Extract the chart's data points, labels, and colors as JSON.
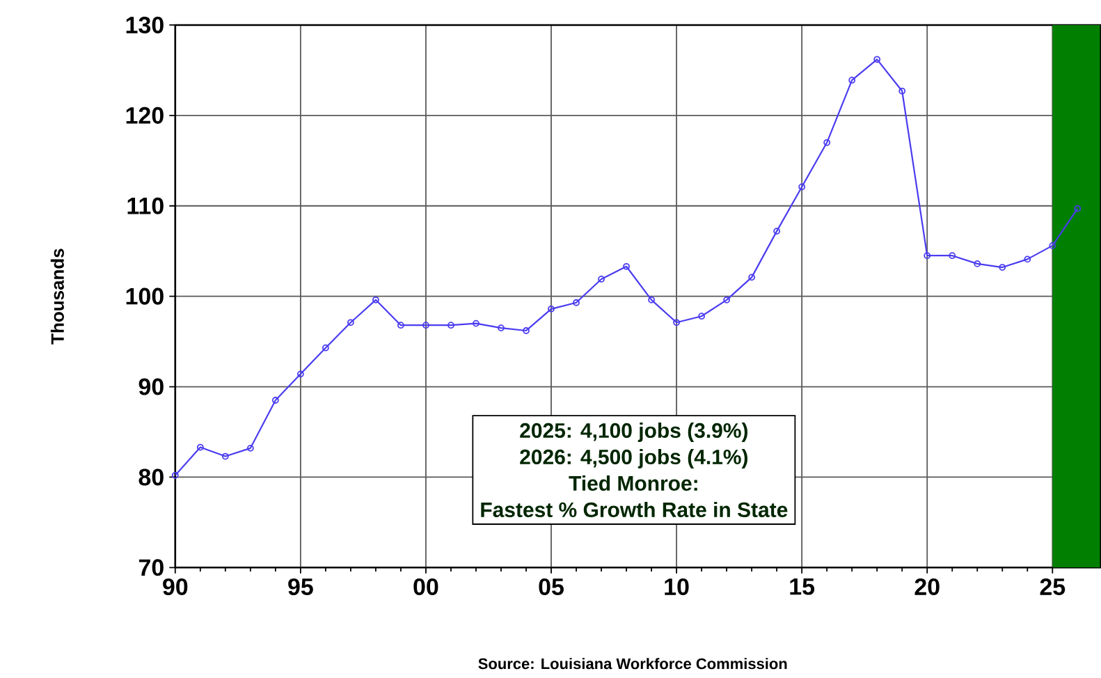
{
  "chart_data": {
    "type": "line",
    "ylabel": "Thousands",
    "x": [
      1990,
      1991,
      1992,
      1993,
      1994,
      1995,
      1996,
      1997,
      1998,
      1999,
      2000,
      2001,
      2002,
      2003,
      2004,
      2005,
      2006,
      2007,
      2008,
      2009,
      2010,
      2011,
      2012,
      2013,
      2014,
      2015,
      2016,
      2017,
      2018,
      2019,
      2020,
      2021,
      2022,
      2023,
      2024,
      2025,
      2026
    ],
    "series": [
      {
        "color": "#4b3cf0",
        "values": [
          80.2,
          83.3,
          82.3,
          83.2,
          88.5,
          91.4,
          94.3,
          97.1,
          99.6,
          96.8,
          96.8,
          96.8,
          97.0,
          96.5,
          96.2,
          98.6,
          99.3,
          101.9,
          103.3,
          99.6,
          97.1,
          97.8,
          99.6,
          102.1,
          107.2,
          112.1,
          117.0,
          123.9,
          126.2,
          122.7,
          104.5,
          104.5,
          103.6,
          103.2,
          104.1,
          105.6,
          109.7
        ]
      }
    ],
    "xlim": [
      1990,
      2026.9
    ],
    "ylim": [
      70,
      130
    ],
    "xticks": [
      {
        "value": 1990,
        "label": "90"
      },
      {
        "value": 1995,
        "label": "95"
      },
      {
        "value": 2000,
        "label": "00"
      },
      {
        "value": 2005,
        "label": "05"
      },
      {
        "value": 2010,
        "label": "10"
      },
      {
        "value": 2015,
        "label": "15"
      },
      {
        "value": 2020,
        "label": "20"
      },
      {
        "value": 2025,
        "label": "25"
      }
    ],
    "yticks": [
      70,
      80,
      90,
      100,
      110,
      120,
      130
    ],
    "bands": [
      {
        "axis": "x",
        "from": 2025,
        "to": 2026.9,
        "color": "#007f00"
      }
    ],
    "annotations": [
      "2025: 4,100 jobs (3.9%)",
      "2026: 4,500 jobs (4.1%)",
      "Tied Monroe:",
      "Fastest % Growth Rate in State",
      "Source: Louisiana Workforce Commission"
    ],
    "grid": true,
    "marker": "circle",
    "line_style": "solid"
  }
}
